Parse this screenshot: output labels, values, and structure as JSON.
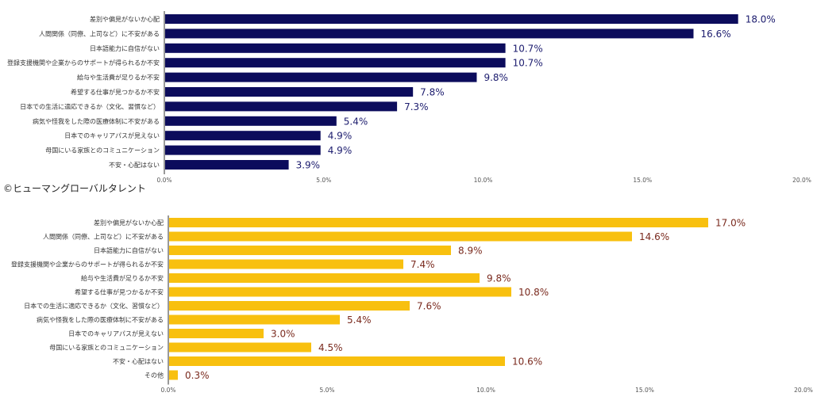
{
  "credit": "©ヒューマングローバルタレント",
  "chart_data": [
    {
      "type": "bar",
      "orientation": "horizontal",
      "color": "#0c0c5c",
      "label_color": "#1c1c6e",
      "categories": [
        "差別や偏見がないか心配",
        "人間関係（同僚、上司など）に不安がある",
        "日本語能力に自信がない",
        "登録支援機関や企業からのサポートが得られるか不安",
        "給与や生活費が足りるか不安",
        "希望する仕事が見つかるか不安",
        "日本での生活に適応できるか（文化、習慣など）",
        "病気や怪我をした際の医療体制に不安がある",
        "日本でのキャリアパスが見えない",
        "母国にいる家族とのコミュニケーション",
        "不安・心配はない"
      ],
      "values": [
        18.0,
        16.6,
        10.7,
        10.7,
        9.8,
        7.8,
        7.3,
        5.4,
        4.9,
        4.9,
        3.9
      ],
      "value_labels": [
        "18.0%",
        "16.6%",
        "10.7%",
        "10.7%",
        "9.8%",
        "7.8%",
        "7.3%",
        "5.4%",
        "4.9%",
        "4.9%",
        "3.9%"
      ],
      "xlim": [
        0,
        20
      ],
      "xticks": [
        "0.0%",
        "5.0%",
        "10.0%",
        "15.0%",
        "20.0%"
      ]
    },
    {
      "type": "bar",
      "orientation": "horizontal",
      "color": "#f8c00f",
      "label_color": "#7a2a1e",
      "categories": [
        "差別や偏見がないか心配",
        "人間関係（同僚、上司など）に不安がある",
        "日本語能力に自信がない",
        "登録支援機関や企業からのサポートが得られるか不安",
        "給与や生活費が足りるか不安",
        "希望する仕事が見つかるか不安",
        "日本での生活に適応できるか（文化、習慣など）",
        "病気や怪我をした際の医療体制に不安がある",
        "日本でのキャリアパスが見えない",
        "母国にいる家族とのコミュニケーション",
        "不安・心配はない",
        "その他"
      ],
      "values": [
        17.0,
        14.6,
        8.9,
        7.4,
        9.8,
        10.8,
        7.6,
        5.4,
        3.0,
        4.5,
        10.6,
        0.3
      ],
      "value_labels": [
        "17.0%",
        "14.6%",
        "8.9%",
        "7.4%",
        "9.8%",
        "10.8%",
        "7.6%",
        "5.4%",
        "3.0%",
        "4.5%",
        "10.6%",
        "0.3%"
      ],
      "xlim": [
        0,
        20
      ],
      "xticks": [
        "0.0%",
        "5.0%",
        "10.0%",
        "15.0%",
        "20.0%"
      ]
    }
  ]
}
